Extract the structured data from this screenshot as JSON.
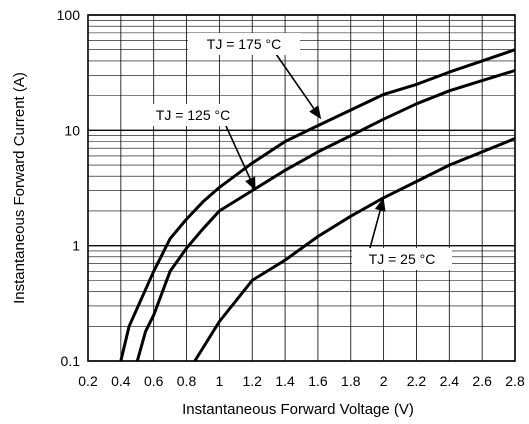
{
  "chart_data": {
    "type": "line",
    "xlabel": "Instantaneous Forward Voltage (V)",
    "ylabel": "Instantaneous Forward Current (A)",
    "xlim": [
      0.2,
      2.8
    ],
    "ylim": [
      0.1,
      100
    ],
    "yscale": "log",
    "grid": true,
    "xticks": [
      "0.2",
      "0.4",
      "0.6",
      "0.8",
      "1",
      "1.2",
      "1.4",
      "1.6",
      "1.8",
      "2",
      "2.2",
      "2.4",
      "2.6",
      "2.8"
    ],
    "yticks": [
      "0.1",
      "1",
      "10",
      "100"
    ],
    "series": [
      {
        "name": "TJ = 175 °C",
        "x": [
          0.4,
          0.45,
          0.6,
          0.7,
          0.8,
          0.9,
          1.0,
          1.2,
          1.4,
          1.6,
          1.8,
          2.0,
          2.2,
          2.4,
          2.6,
          2.8
        ],
        "y": [
          0.1,
          0.2,
          0.6,
          1.15,
          1.7,
          2.4,
          3.2,
          5.2,
          8.0,
          11.0,
          15.0,
          20.5,
          25.0,
          32.0,
          40.0,
          50.0
        ]
      },
      {
        "name": "TJ = 125 °C",
        "x": [
          0.5,
          0.55,
          0.6,
          0.7,
          0.8,
          0.9,
          1.0,
          1.2,
          1.4,
          1.6,
          1.8,
          2.0,
          2.2,
          2.4,
          2.6,
          2.8
        ],
        "y": [
          0.1,
          0.18,
          0.25,
          0.6,
          0.95,
          1.4,
          2.0,
          3.0,
          4.5,
          6.5,
          9.0,
          12.5,
          17.0,
          22.0,
          27.0,
          33.0
        ]
      },
      {
        "name": "TJ = 25 °C",
        "x": [
          0.85,
          1.0,
          1.2,
          1.4,
          1.6,
          1.8,
          2.0,
          2.2,
          2.4,
          2.6,
          2.8
        ],
        "y": [
          0.1,
          0.22,
          0.5,
          0.75,
          1.2,
          1.8,
          2.6,
          3.6,
          5.0,
          6.5,
          8.5
        ]
      }
    ],
    "annotations": [
      {
        "text": "TJ = 175 °C",
        "x": 1.62,
        "y": 12.5
      },
      {
        "text": "TJ = 125 °C",
        "x": 1.22,
        "y": 3.0
      },
      {
        "text": "TJ = 25 °C",
        "x": 2.0,
        "y": 2.6
      }
    ]
  }
}
